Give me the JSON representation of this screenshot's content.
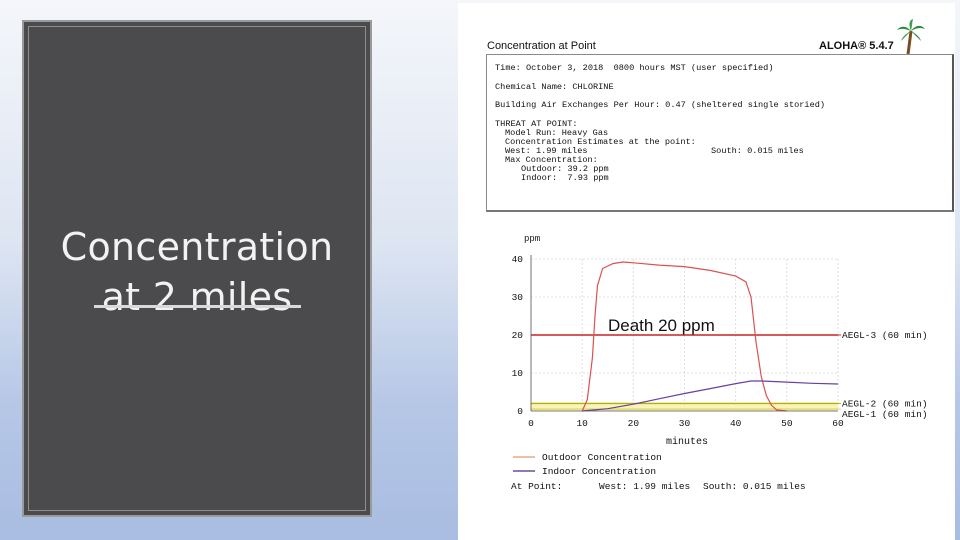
{
  "slide": {
    "title": "Concentration\nat 2 miles"
  },
  "report": {
    "header_left": "Concentration at Point",
    "header_right": "ALOHA® 5.4.7",
    "time_line": "Time: October 3, 2018  0800 hours MST (user specified)",
    "chemical_line": "Chemical Name: CHLORINE",
    "air_exchange_line": "Building Air Exchanges Per Hour: 0.47 (sheltered single storied)",
    "threat_header": "THREAT AT POINT:",
    "model_run": "Model Run: Heavy Gas",
    "conc_estimates": "Concentration Estimates at the point:",
    "west": "West: 1.99 miles",
    "south": "South: 0.015 miles",
    "max_conc": "Max Concentration:",
    "outdoor_max": "Outdoor: 39.2 ppm",
    "indoor_max": "Indoor:  7.93 ppm"
  },
  "chart_data": {
    "type": "line",
    "ylabel": "ppm",
    "xlabel": "minutes",
    "xlim": [
      0,
      60
    ],
    "ylim": [
      0,
      40
    ],
    "x_ticks": [
      "0",
      "10",
      "20",
      "30",
      "40",
      "50",
      "60"
    ],
    "y_ticks": [
      "0",
      "10",
      "20",
      "30",
      "40"
    ],
    "series": [
      {
        "name": "Outdoor Concentration",
        "color": "#d9534f",
        "x": [
          10,
          11,
          12,
          12.5,
          13,
          14,
          16,
          18,
          20,
          25,
          30,
          35,
          40,
          42,
          43,
          44,
          45,
          46,
          47,
          48,
          50
        ],
        "y": [
          0,
          3,
          14,
          25,
          33,
          37.5,
          38.8,
          39.2,
          39,
          38.4,
          38,
          37,
          35.5,
          34,
          30,
          18,
          9,
          4,
          1.5,
          0.3,
          0
        ]
      },
      {
        "name": "Indoor Concentration",
        "color": "#6a3fa0",
        "x": [
          10,
          15,
          20,
          25,
          30,
          35,
          40,
          43,
          45,
          50,
          55,
          60
        ],
        "y": [
          0,
          0.6,
          1.8,
          3.2,
          4.6,
          5.9,
          7.2,
          7.9,
          7.9,
          7.6,
          7.3,
          7.1
        ]
      }
    ],
    "thresholds": [
      {
        "label": "AEGL-3 (60 min)",
        "value": 20,
        "color": "#cc2222"
      },
      {
        "label": "AEGL-2 (60 min)",
        "value": 2,
        "color": "#b8b000"
      },
      {
        "label": "AEGL-1 (60 min)",
        "value": 0.5,
        "color": "#e0d870"
      }
    ],
    "annotation": "Death 20 ppm",
    "footer_at_point": "At Point:",
    "footer_west": "West: 1.99 miles",
    "footer_south": "South: 0.015 miles"
  }
}
